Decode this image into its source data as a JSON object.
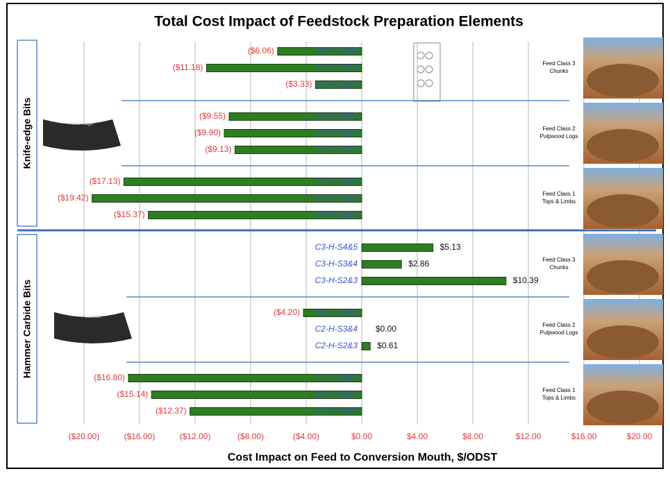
{
  "chart_data": {
    "type": "bar",
    "orientation": "horizontal",
    "title": "Total Cost Impact of Feedstock Preparation Elements",
    "xlabel": "Cost Impact on Feed to Conversion Mouth, $/ODST",
    "categories": [
      "C3-K-S4&5",
      "C3-K-S3&4",
      "C3-K-S2&3",
      "C2-K-S4&5",
      "C2-K-S3&4",
      "C2-K-S2&3",
      "C1-K-S4&5",
      "C1-K-S3&4",
      "C1-K-S2&3",
      "C3-H-S4&5",
      "C3-H-S3&4",
      "C3-H-S2&3",
      "C2-H-S4&5",
      "C2-H-S3&4",
      "C2-H-S2&3",
      "C1-H-S4&5",
      "C1-H-S3&4",
      "C1-H-S2&3"
    ],
    "values": [
      -6.06,
      -11.18,
      -3.33,
      -9.55,
      -9.9,
      -9.13,
      -17.13,
      -19.42,
      -15.37,
      5.13,
      2.86,
      10.39,
      -4.2,
      0.0,
      0.61,
      -16.8,
      -15.14,
      -12.37
    ],
    "value_labels": [
      "($6.06)",
      "($11.18)",
      "($3.33)",
      "($9.55)",
      "($9.90)",
      "($9.13)",
      "($17.13)",
      "($19.42)",
      "($15.37)",
      "$5.13",
      "$2.86",
      "$10.39",
      "($4.20)",
      "$0.00",
      "$0.61",
      "($16.80)",
      "($15.14)",
      "($12.37)"
    ],
    "color": "#2f7d22",
    "xlim": [
      -20,
      20
    ],
    "xticks": [
      {
        "value": -20,
        "label": "($20.00)"
      },
      {
        "value": -16,
        "label": "($16.00)"
      },
      {
        "value": -12,
        "label": "($12.00)"
      },
      {
        "value": -8,
        "label": "($8.00)"
      },
      {
        "value": -4,
        "label": "($4.00)"
      },
      {
        "value": 0,
        "label": "$0.00"
      },
      {
        "value": 4,
        "label": "$4.00"
      },
      {
        "value": 8,
        "label": "$8.00"
      },
      {
        "value": 12,
        "label": "$12.00"
      },
      {
        "value": 16,
        "label": "$16.00"
      },
      {
        "value": 20,
        "label": "$20.00"
      }
    ],
    "grid": true,
    "groups": [
      {
        "name": "Knife-edge Bits",
        "bit": "Knife-edge"
      },
      {
        "name": "Hammer Carbide Bits",
        "bit": "Carbide"
      }
    ],
    "feed_classes": [
      {
        "title": "Feed Class 3",
        "subtitle": "Chunks"
      },
      {
        "title": "Feed Class 2",
        "subtitle": "Pulpwood Logs"
      },
      {
        "title": "Feed Class 1",
        "subtitle": "Tops & Limbs"
      }
    ]
  }
}
